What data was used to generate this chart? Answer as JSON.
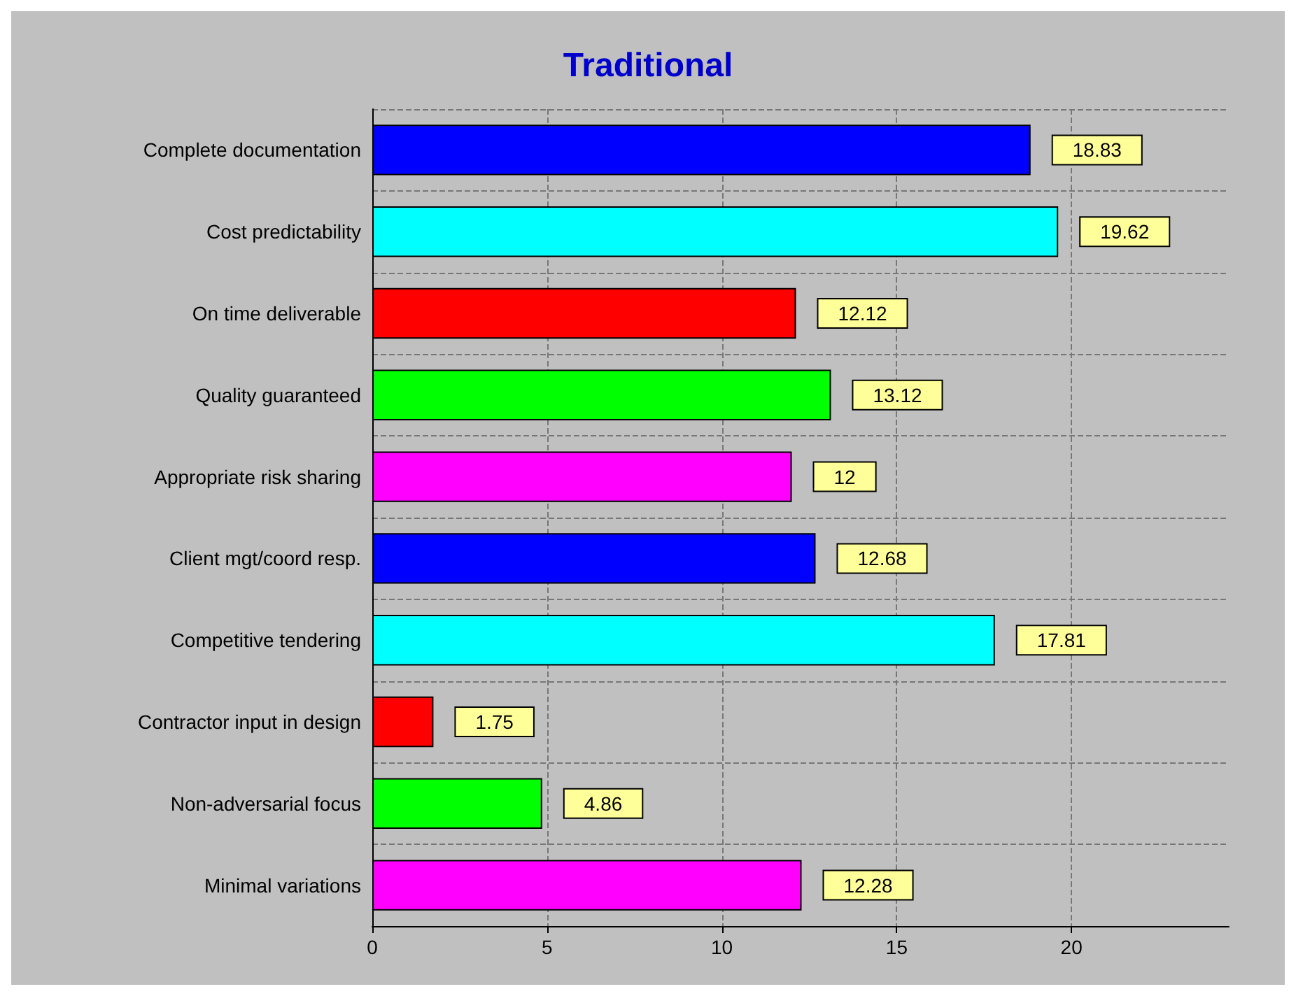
{
  "chart_data": {
    "type": "bar",
    "orientation": "horizontal",
    "title": "Traditional",
    "categories": [
      "Complete documentation",
      "Cost predictability",
      "On time deliverable",
      "Quality guaranteed",
      "Appropriate risk sharing",
      "Client mgt/coord resp.",
      "Competitive tendering",
      "Contractor input in design",
      "Non-adversarial focus",
      "Minimal variations"
    ],
    "values": [
      18.83,
      19.62,
      12.12,
      13.12,
      12,
      12.68,
      17.81,
      1.75,
      4.86,
      12.28
    ],
    "colors": [
      "#0000ff",
      "#00ffff",
      "#ff0000",
      "#00ff00",
      "#ff00ff",
      "#0000ff",
      "#00ffff",
      "#ff0000",
      "#00ff00",
      "#ff00ff"
    ],
    "xlim": [
      0,
      24.5
    ],
    "xticks": [
      0,
      5,
      10,
      15,
      20
    ],
    "grid": true,
    "data_labels": true
  }
}
